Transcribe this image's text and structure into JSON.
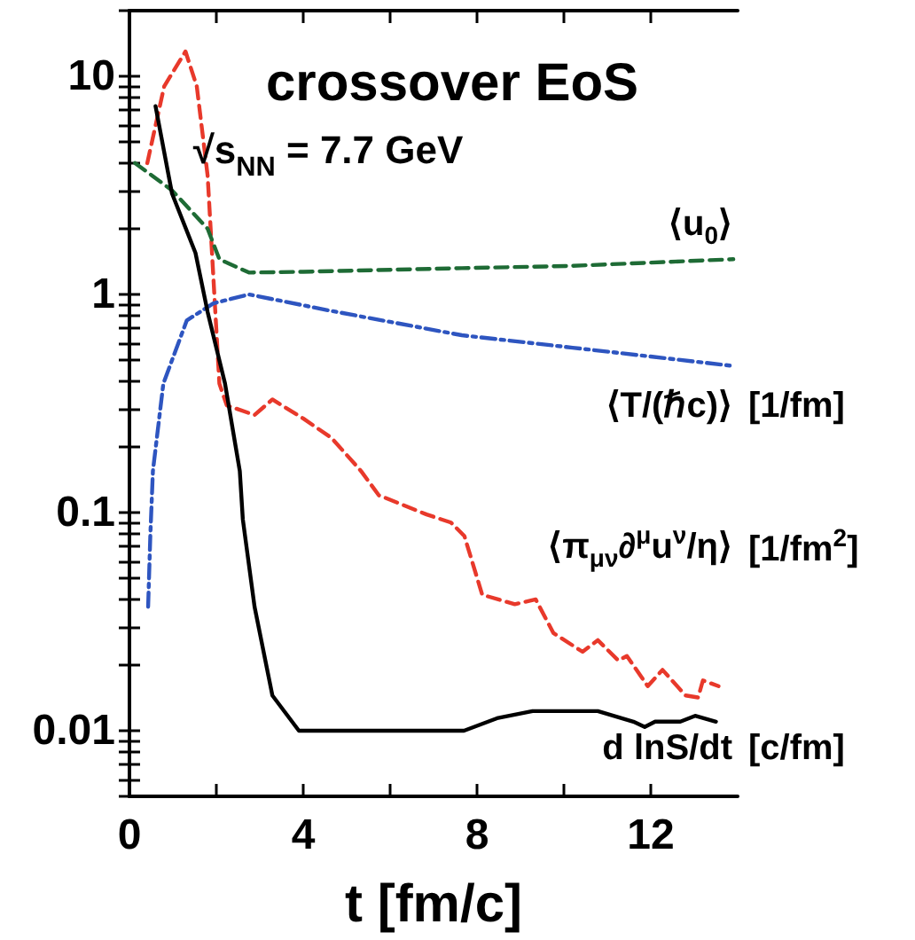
{
  "chart_data": {
    "type": "line",
    "title": "crossover EoS",
    "subtitle": "√s$_{NN}$ = 7.7 GeV",
    "xlabel": "t [fm/c]",
    "log": "y",
    "xlim": [
      0,
      14
    ],
    "xticks": [
      0,
      {
        "value": 2,
        "label": null
      },
      4,
      {
        "value": 6,
        "label": null
      },
      8,
      {
        "value": 10,
        "label": null
      },
      12
    ],
    "ylim": [
      0.005,
      20
    ],
    "yticks": [
      {
        "value": 0.005,
        "label": null
      },
      {
        "value": 0.006,
        "label": null
      },
      {
        "value": 0.007,
        "label": null
      },
      {
        "value": 0.008,
        "label": null
      },
      {
        "value": 0.009,
        "label": null
      },
      0.01,
      {
        "value": 0.02,
        "label": null
      },
      {
        "value": 0.03,
        "label": null
      },
      {
        "value": 0.04,
        "label": null
      },
      {
        "value": 0.05,
        "label": null
      },
      {
        "value": 0.06,
        "label": null
      },
      {
        "value": 0.07,
        "label": null
      },
      {
        "value": 0.08,
        "label": null
      },
      {
        "value": 0.09,
        "label": null
      },
      0.1,
      {
        "value": 0.2,
        "label": null
      },
      {
        "value": 0.3,
        "label": null
      },
      {
        "value": 0.4,
        "label": null
      },
      {
        "value": 0.5,
        "label": null
      },
      {
        "value": 0.6,
        "label": null
      },
      {
        "value": 0.7,
        "label": null
      },
      {
        "value": 0.8,
        "label": null
      },
      {
        "value": 0.9,
        "label": null
      },
      1,
      {
        "value": 2,
        "label": null
      },
      {
        "value": 3,
        "label": null
      },
      {
        "value": 4,
        "label": null
      },
      {
        "value": 5,
        "label": null
      },
      {
        "value": 6,
        "label": null
      },
      {
        "value": 7,
        "label": null
      },
      {
        "value": 8,
        "label": null
      },
      {
        "value": 9,
        "label": null
      },
      10,
      {
        "value": 20,
        "label": null
      }
    ],
    "series": [
      {
        "name": "⟨π$_{μν}$∂$^{μ}$u$^{ν}$/η⟩ [1/fm$^{2}$]",
        "color": "#e8392b",
        "line_style": "dashed",
        "x": [
          0.41,
          0.8,
          1.29,
          1.55,
          1.8,
          2.07,
          2.24,
          2.88,
          3.29,
          4.0,
          4.65,
          5.33,
          5.74,
          6.84,
          7.4,
          7.71,
          8.12,
          8.87,
          9.35,
          9.76,
          10.43,
          10.78,
          11.25,
          11.45,
          11.93,
          12.27,
          12.8,
          13.09,
          13.2,
          13.56
        ],
        "values": [
          4.0,
          9,
          13,
          9,
          3.5,
          0.39,
          0.31,
          0.28,
          0.33,
          0.27,
          0.22,
          0.155,
          0.12,
          0.098,
          0.09,
          0.078,
          0.042,
          0.038,
          0.04,
          0.028,
          0.023,
          0.026,
          0.021,
          0.022,
          0.016,
          0.019,
          0.0145,
          0.0142,
          0.017,
          0.016
        ]
      },
      {
        "name": "⟨u$_{0}$⟩",
        "color": "#1e6b35",
        "line_style": "dashed",
        "x": [
          0.13,
          0.98,
          1.8,
          2.07,
          2.75,
          4,
          7.65,
          10.1,
          13.9
        ],
        "values": [
          4.0,
          3.0,
          2.0,
          1.45,
          1.26,
          1.27,
          1.32,
          1.35,
          1.45
        ]
      },
      {
        "name": "⟨T/(ℏc)⟩ [1/fm]",
        "color": "#2e55c0",
        "line_style": "dashdot",
        "x": [
          0.43,
          0.48,
          0.54,
          0.78,
          1.32,
          1.93,
          2.75,
          4.65,
          7.65,
          10.2,
          13.9
        ],
        "values": [
          0.037,
          0.078,
          0.155,
          0.39,
          0.76,
          0.91,
          1.0,
          0.84,
          0.65,
          0.57,
          0.47
        ]
      },
      {
        "name": "d lnS/dt [c/fm]",
        "color": "#000000",
        "line_style": "solid",
        "x": [
          0.6,
          0.98,
          1.52,
          1.8,
          2.2,
          2.54,
          2.61,
          2.88,
          3.29,
          3.9,
          7.7,
          8.46,
          9.28,
          10.78,
          11.6,
          11.86,
          12.1,
          12.68,
          13.02,
          13.5
        ],
        "values": [
          7.3,
          2.9,
          1.55,
          0.83,
          0.39,
          0.155,
          0.093,
          0.037,
          0.0145,
          0.01,
          0.01,
          0.0114,
          0.0123,
          0.0123,
          0.011,
          0.0104,
          0.011,
          0.011,
          0.0117,
          0.011
        ]
      }
    ]
  }
}
